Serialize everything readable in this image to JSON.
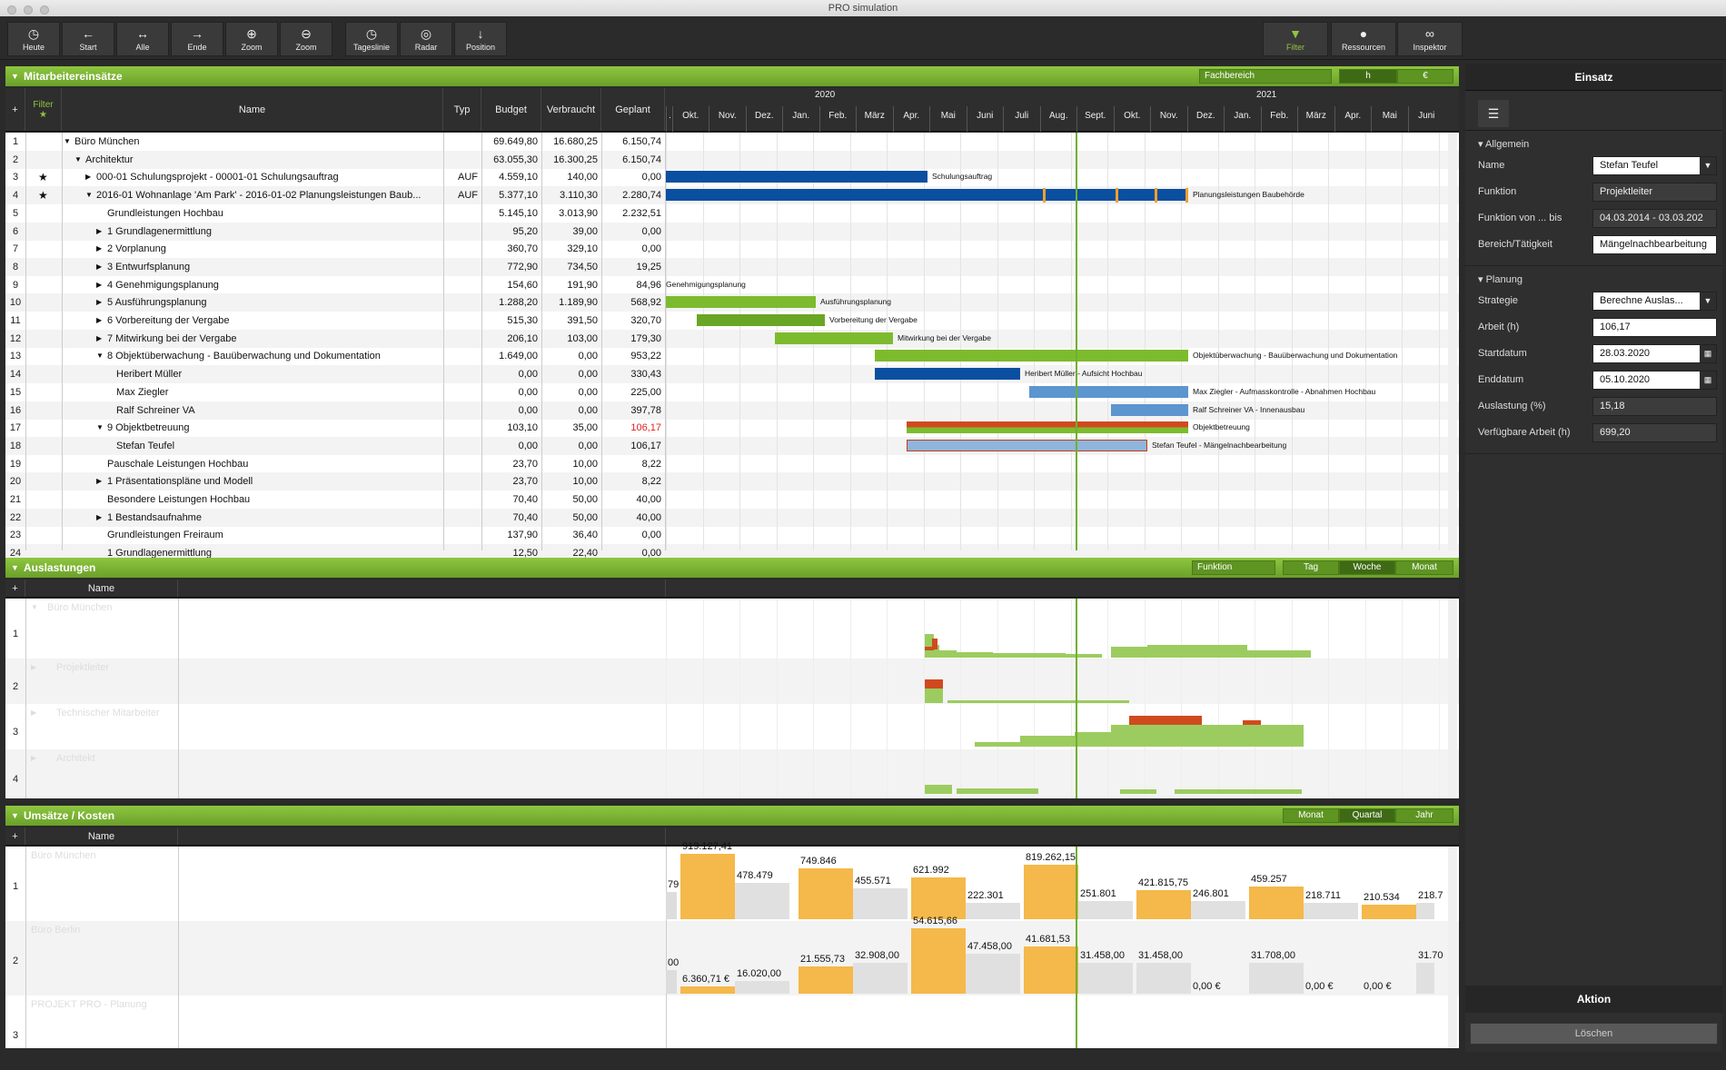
{
  "window": {
    "title": "PRO simulation"
  },
  "toolbar": {
    "left": [
      {
        "id": "heute",
        "label": "Heute",
        "icon": "clock-icon"
      },
      {
        "id": "start",
        "label": "Start",
        "icon": "arrow-left-icon"
      },
      {
        "id": "alle",
        "label": "Alle",
        "icon": "arrows-horizontal-icon"
      },
      {
        "id": "ende",
        "label": "Ende",
        "icon": "arrow-right-icon"
      },
      {
        "id": "zoom-in",
        "label": "Zoom",
        "icon": "zoom-in-icon"
      },
      {
        "id": "zoom-out",
        "label": "Zoom",
        "icon": "zoom-out-icon"
      },
      {
        "id": "tageslinie",
        "label": "Tageslinie",
        "icon": "clock-icon"
      },
      {
        "id": "radar",
        "label": "Radar",
        "icon": "radar-icon"
      },
      {
        "id": "position",
        "label": "Position",
        "icon": "arrow-down-icon"
      }
    ],
    "right": [
      {
        "id": "filter",
        "label": "Filter",
        "icon": "filter-icon"
      },
      {
        "id": "ressourcen",
        "label": "Ressourcen",
        "icon": "person-icon"
      },
      {
        "id": "inspektor",
        "label": "Inspektor",
        "icon": "binoculars-icon"
      }
    ]
  },
  "mitarbeiter": {
    "title": "Mitarbeitereinsätze",
    "fachbereich": "Fachbereich",
    "unit_h": "h",
    "unit_eur": "€",
    "filter_label": "Filter",
    "columns": {
      "name": "Name",
      "typ": "Typ",
      "budget": "Budget",
      "verbraucht": "Verbraucht",
      "geplant": "Geplant"
    },
    "years": [
      "2020",
      "2021"
    ],
    "months": [
      ".",
      "Okt.",
      "Nov.",
      "Dez.",
      "Jan.",
      "Feb.",
      "März",
      "Apr.",
      "Mai",
      "Juni",
      "Juli",
      "Aug.",
      "Sept.",
      "Okt.",
      "Nov.",
      "Dez.",
      "Jan.",
      "Feb.",
      "März",
      "Apr.",
      "Mai",
      "Juni"
    ],
    "rows": [
      {
        "n": "1",
        "name": "Büro München",
        "budget": "69.649,80",
        "verbraucht": "16.680,25",
        "geplant": "6.150,74",
        "indent": 0,
        "tri": "▼"
      },
      {
        "n": "2",
        "name": "Architektur",
        "budget": "63.055,30",
        "verbraucht": "16.300,25",
        "geplant": "6.150,74",
        "indent": 1,
        "tri": "▼"
      },
      {
        "n": "3",
        "star": "★",
        "name": "000-01 Schulungsprojekt - 00001-01 Schulungsauftrag",
        "typ": "AUF",
        "budget": "4.559,10",
        "verbraucht": "140,00",
        "geplant": "0,00",
        "indent": 2,
        "tri": "▶"
      },
      {
        "n": "4",
        "star": "★",
        "name": "2016-01 Wohnanlage 'Am Park' - 2016-01-02 Planungsleistungen Baub...",
        "typ": "AUF",
        "budget": "5.377,10",
        "verbraucht": "3.110,30",
        "geplant": "2.280,74",
        "indent": 2,
        "tri": "▼"
      },
      {
        "n": "5",
        "name": "Grundleistungen Hochbau",
        "budget": "5.145,10",
        "verbraucht": "3.013,90",
        "geplant": "2.232,51",
        "indent": 3,
        "tri": ""
      },
      {
        "n": "6",
        "name": "1 Grundlagenermittlung",
        "budget": "95,20",
        "verbraucht": "39,00",
        "geplant": "0,00",
        "indent": 3,
        "tri": "▶"
      },
      {
        "n": "7",
        "name": "2 Vorplanung",
        "budget": "360,70",
        "verbraucht": "329,10",
        "geplant": "0,00",
        "indent": 3,
        "tri": "▶"
      },
      {
        "n": "8",
        "name": "3 Entwurfsplanung",
        "budget": "772,90",
        "verbraucht": "734,50",
        "geplant": "19,25",
        "indent": 3,
        "tri": "▶"
      },
      {
        "n": "9",
        "name": "4 Genehmigungsplanung",
        "budget": "154,60",
        "verbraucht": "191,90",
        "geplant": "84,96",
        "indent": 3,
        "tri": "▶"
      },
      {
        "n": "10",
        "name": "5 Ausführungsplanung",
        "budget": "1.288,20",
        "verbraucht": "1.189,90",
        "geplant": "568,92",
        "indent": 3,
        "tri": "▶"
      },
      {
        "n": "11",
        "name": "6 Vorbereitung der Vergabe",
        "budget": "515,30",
        "verbraucht": "391,50",
        "geplant": "320,70",
        "indent": 3,
        "tri": "▶"
      },
      {
        "n": "12",
        "name": "7 Mitwirkung bei der Vergabe",
        "budget": "206,10",
        "verbraucht": "103,00",
        "geplant": "179,30",
        "indent": 3,
        "tri": "▶"
      },
      {
        "n": "13",
        "name": "8 Objektüberwachung - Bauüberwachung und Dokumentation",
        "budget": "1.649,00",
        "verbraucht": "0,00",
        "geplant": "953,22",
        "indent": 3,
        "tri": "▼"
      },
      {
        "n": "14",
        "name": "Heribert Müller",
        "budget": "0,00",
        "verbraucht": "0,00",
        "geplant": "330,43",
        "indent": 4,
        "tri": ""
      },
      {
        "n": "15",
        "name": "Max Ziegler",
        "budget": "0,00",
        "verbraucht": "0,00",
        "geplant": "225,00",
        "indent": 4,
        "tri": ""
      },
      {
        "n": "16",
        "name": "Ralf Schreiner VA",
        "budget": "0,00",
        "verbraucht": "0,00",
        "geplant": "397,78",
        "indent": 4,
        "tri": ""
      },
      {
        "n": "17",
        "name": "9 Objektbetreuung",
        "budget": "103,10",
        "verbraucht": "35,00",
        "geplant": "106,17",
        "indent": 3,
        "tri": "▼",
        "red": true
      },
      {
        "n": "18",
        "name": "Stefan Teufel",
        "budget": "0,00",
        "verbraucht": "0,00",
        "geplant": "106,17",
        "indent": 4,
        "tri": ""
      },
      {
        "n": "19",
        "name": "Pauschale Leistungen Hochbau",
        "budget": "23,70",
        "verbraucht": "10,00",
        "geplant": "8,22",
        "indent": 3,
        "tri": ""
      },
      {
        "n": "20",
        "name": "1 Präsentationspläne und Modell",
        "budget": "23,70",
        "verbraucht": "10,00",
        "geplant": "8,22",
        "indent": 3,
        "tri": "▶"
      },
      {
        "n": "21",
        "name": "Besondere Leistungen Hochbau",
        "budget": "70,40",
        "verbraucht": "50,00",
        "geplant": "40,00",
        "indent": 3,
        "tri": ""
      },
      {
        "n": "22",
        "name": "1 Bestandsaufnahme",
        "budget": "70,40",
        "verbraucht": "50,00",
        "geplant": "40,00",
        "indent": 3,
        "tri": "▶"
      },
      {
        "n": "23",
        "name": "Grundleistungen Freiraum",
        "budget": "137,90",
        "verbraucht": "36,40",
        "geplant": "0,00",
        "indent": 3,
        "tri": ""
      },
      {
        "n": "24",
        "name": "1 Grundlagenermittlung",
        "budget": "12,50",
        "verbraucht": "22,40",
        "geplant": "0,00",
        "indent": 3,
        "tri": ""
      }
    ],
    "bar_labels": {
      "schulung": "Schulungsauftrag",
      "planung": "Planungsleistungen Baubehörde",
      "genehmigung": "Genehmigungsplanung",
      "ausfuehrung": "Ausführungsplanung",
      "vorbereitung": "Vorbereitung der Vergabe",
      "mitwirkung": "Mitwirkung bei der Vergabe",
      "objekt": "Objektüberwachung - Bauüberwachung und Dokumentation",
      "mueller": "Heribert Müller - Aufsicht Hochbau",
      "ziegler": "Max Ziegler - Aufmasskontrolle - Abnahmen Hochbau",
      "schreiner": "Ralf Schreiner VA - Innenausbau",
      "betreuung": "Objektbetreuung",
      "teufel": "Stefan Teufel - Mängelnachbearbeitung"
    }
  },
  "auslastungen": {
    "title": "Auslastungen",
    "funktion": "Funktion",
    "tabs": [
      "Tag",
      "Woche",
      "Monat"
    ],
    "name_col": "Name",
    "rows": [
      {
        "n": "1",
        "name": "Büro München",
        "tri": "▼"
      },
      {
        "n": "2",
        "name": "Projektleiter",
        "tri": "▶"
      },
      {
        "n": "3",
        "name": "Technischer Mitarbeiter",
        "tri": "▶"
      },
      {
        "n": "4",
        "name": "Architekt",
        "tri": "▶"
      }
    ]
  },
  "umsaetze": {
    "title": "Umsätze / Kosten",
    "tabs": [
      "Monat",
      "Quartal",
      "Jahr"
    ],
    "name_col": "Name",
    "rows": [
      {
        "n": "1",
        "name": "Büro München"
      },
      {
        "n": "2",
        "name": "Büro Berlin"
      },
      {
        "n": "3",
        "name": "PROJEKT PRO - Planung"
      }
    ],
    "row1_labels": [
      "79",
      "919.127,41",
      "478.479",
      "749.846",
      "455.571",
      "621.992",
      "222.301",
      "819.262,15",
      "251.801",
      "421.815,75",
      "246.801",
      "459.257",
      "218.711",
      "210.534",
      "218.7"
    ],
    "row2_labels": [
      "00",
      "6.360,71 €",
      "16.020,00",
      "21.555,73",
      "32.908,00",
      "54.615,66",
      "47.458,00",
      "41.681,53",
      "31.458,00",
      "31.458,00",
      "0,00 €",
      "31.708,00",
      "0,00 €",
      "0,00 €",
      "31.70"
    ]
  },
  "inspector": {
    "title": "Einsatz",
    "tab_icon": "sliders-icon",
    "sections": {
      "allgemein": "Allgemein",
      "planung": "Planung"
    },
    "fields": {
      "name": {
        "label": "Name",
        "value": "Stefan Teufel"
      },
      "funktion": {
        "label": "Funktion",
        "value": "Projektleiter"
      },
      "funktion_von": {
        "label": "Funktion von ... bis",
        "value": "04.03.2014 - 03.03.202"
      },
      "bereich": {
        "label": "Bereich/Tätigkeit",
        "value": "Mängelnachbearbeitung"
      },
      "strategie": {
        "label": "Strategie",
        "value": "Berechne Auslas..."
      },
      "arbeit": {
        "label": "Arbeit (h)",
        "value": "106,17"
      },
      "startdatum": {
        "label": "Startdatum",
        "value": "28.03.2020"
      },
      "enddatum": {
        "label": "Enddatum",
        "value": "05.10.2020"
      },
      "auslastung": {
        "label": "Auslastung (%)",
        "value": "15,18"
      },
      "verfuegbar": {
        "label": "Verfügbare Arbeit (h)",
        "value": "699,20"
      }
    },
    "aktion": "Aktion",
    "loeschen": "Löschen"
  }
}
